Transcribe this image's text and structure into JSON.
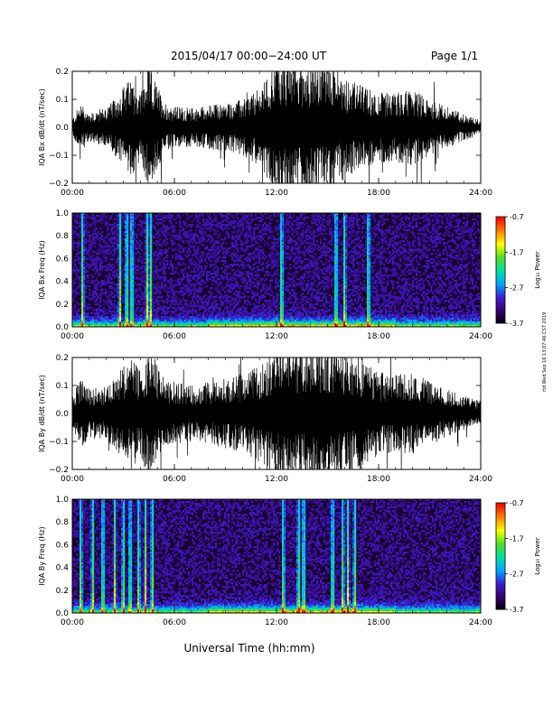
{
  "header": {
    "date_range": "2015/04/17  00:00−24:00 UT",
    "page": "Page 1/1"
  },
  "footer": {
    "xlabel": "Universal Time (hh:mm)",
    "side_stamp": "rtd Wed Sep 16 13:07:46 CST 2019"
  },
  "colorbar": {
    "label": "Log₁₀ Power",
    "ticks": [
      "-0.7",
      "-1.7",
      "-2.7",
      "-3.7"
    ],
    "colors": [
      "#000000",
      "#3a0070",
      "#3a1fd0",
      "#00a8ff",
      "#00e0a0",
      "#50e020",
      "#ffff00",
      "#ff8000",
      "#ff0000"
    ]
  },
  "chart_data": [
    {
      "type": "line",
      "ylabel": "IQA Bx dB/dt (nT/sec)",
      "xlim": [
        0,
        24
      ],
      "ylim": [
        -0.2,
        0.2
      ],
      "x_ticks": [
        "00:00",
        "06:00",
        "12:00",
        "18:00",
        "24:00"
      ],
      "y_ticks": [
        "0.2",
        "0.1",
        "0.0",
        "−0.1",
        "−0.2"
      ],
      "line_color": "#000000",
      "activity_profile": {
        "hours": [
          0,
          0.5,
          1,
          2,
          2.5,
          3,
          3.5,
          4,
          4.5,
          5,
          5.5,
          6,
          7,
          8,
          9,
          10,
          11,
          11.5,
          12,
          13,
          14,
          15,
          16,
          17,
          18,
          19,
          20,
          21,
          22,
          23,
          24
        ],
        "amplitude": [
          0.12,
          0.35,
          0.2,
          0.3,
          0.4,
          0.6,
          0.7,
          0.5,
          0.9,
          0.6,
          0.35,
          0.3,
          0.28,
          0.32,
          0.35,
          0.4,
          0.55,
          0.75,
          1.0,
          1.0,
          1.0,
          0.95,
          0.75,
          0.6,
          0.5,
          0.5,
          0.55,
          0.4,
          0.3,
          0.2,
          0.1
        ]
      }
    },
    {
      "type": "heatmap",
      "ylabel": "IQA Bx Freq (Hz)",
      "xlim": [
        0,
        24
      ],
      "ylim": [
        0,
        1.0
      ],
      "x_ticks": [
        "00:00",
        "06:00",
        "12:00",
        "18:00",
        "24:00"
      ],
      "y_ticks": [
        "1.0",
        "0.8",
        "0.6",
        "0.4",
        "0.2",
        "0.0"
      ],
      "zlim": [
        -3.7,
        -0.7
      ],
      "z_label": "Log₁₀ Power",
      "bursts_hours": [
        0.6,
        2.8,
        3.2,
        3.5,
        4.4,
        4.6,
        12.3,
        15.5,
        16.0,
        17.4
      ]
    },
    {
      "type": "line",
      "ylabel": "IQA By dB/dt (nT/sec)",
      "xlim": [
        0,
        24
      ],
      "ylim": [
        -0.2,
        0.2
      ],
      "x_ticks": [
        "00:00",
        "06:00",
        "12:00",
        "18:00",
        "24:00"
      ],
      "y_ticks": [
        "0.2",
        "0.1",
        "0.0",
        "−0.1",
        "−0.2"
      ],
      "line_color": "#000000",
      "activity_profile": {
        "hours": [
          0,
          0.5,
          1,
          2,
          2.5,
          3,
          3.5,
          4,
          4.5,
          5,
          5.5,
          6,
          7,
          8,
          9,
          10,
          11,
          11.5,
          12,
          13,
          14,
          15,
          16,
          17,
          18,
          19,
          20,
          21,
          22,
          23,
          24
        ],
        "amplitude": [
          0.3,
          0.5,
          0.35,
          0.4,
          0.5,
          0.7,
          0.8,
          0.6,
          1.0,
          0.7,
          0.45,
          0.45,
          0.4,
          0.45,
          0.5,
          0.55,
          0.7,
          0.85,
          1.0,
          1.0,
          1.0,
          1.0,
          0.95,
          0.8,
          0.6,
          0.55,
          0.6,
          0.45,
          0.35,
          0.25,
          0.18
        ]
      }
    },
    {
      "type": "heatmap",
      "ylabel": "IQA By Freq (Hz)",
      "xlim": [
        0,
        24
      ],
      "ylim": [
        0,
        1.0
      ],
      "x_ticks": [
        "00:00",
        "06:00",
        "12:00",
        "18:00",
        "24:00"
      ],
      "y_ticks": [
        "1.0",
        "0.8",
        "0.6",
        "0.4",
        "0.2",
        "0.0"
      ],
      "zlim": [
        -3.7,
        -0.7
      ],
      "z_label": "Log₁₀ Power",
      "bursts_hours": [
        0.5,
        1.2,
        1.8,
        2.5,
        3.0,
        3.4,
        3.9,
        4.3,
        4.7,
        12.4,
        13.3,
        13.6,
        15.3,
        15.9,
        16.2,
        16.6
      ]
    }
  ]
}
